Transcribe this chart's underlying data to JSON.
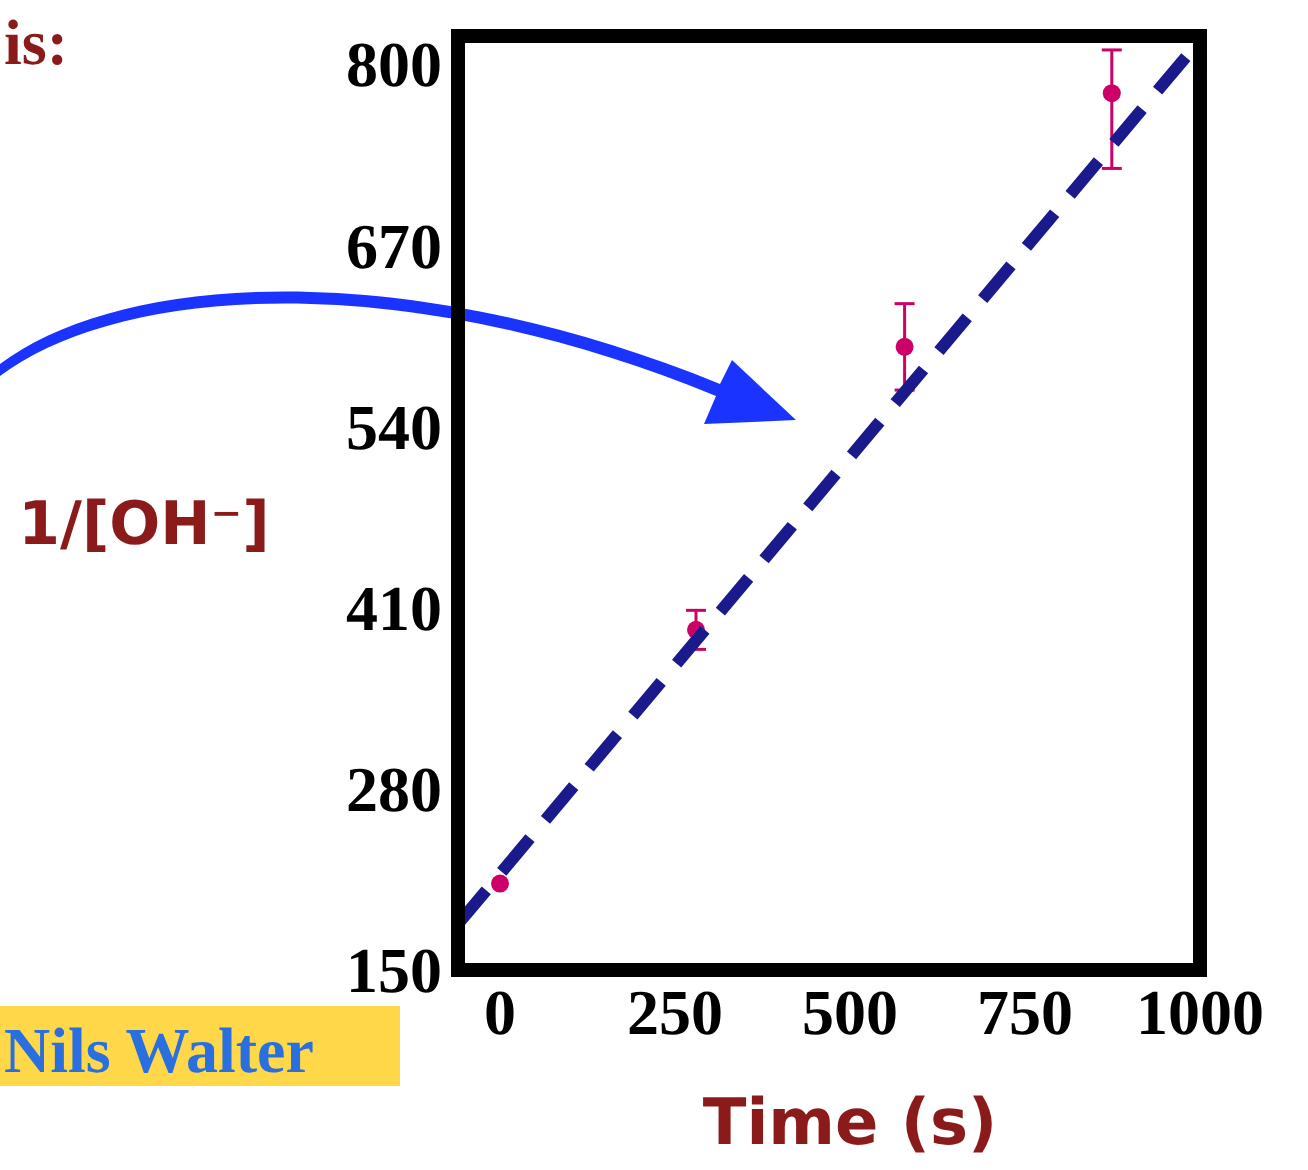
{
  "chart_data": {
    "type": "scatter",
    "xlabel": "Time (s)",
    "ylabel": "1/[OH⁻]",
    "xlim": [
      -60,
      1000
    ],
    "ylim": [
      150,
      820
    ],
    "xticks": [
      0,
      250,
      500,
      750,
      1000
    ],
    "yticks": [
      150,
      280,
      410,
      540,
      670,
      800
    ],
    "grid": false,
    "marker": "circle",
    "series": [
      {
        "type": "scatter",
        "color": "#cc0066",
        "x": [
          0,
          280,
          578,
          874
        ],
        "values": [
          212,
          394,
          597,
          779
        ],
        "errors": [
          null,
          [
            380,
            408
          ],
          [
            566,
            628
          ],
          [
            725,
            810
          ]
        ]
      },
      {
        "type": "line",
        "color": "#1a1a8c",
        "line_style": "dashed",
        "marker": "none",
        "x": [
          -60,
          1000
        ],
        "values": [
          183,
          817
        ]
      }
    ],
    "annotations": [
      "is:",
      "Nils Walter"
    ]
  }
}
